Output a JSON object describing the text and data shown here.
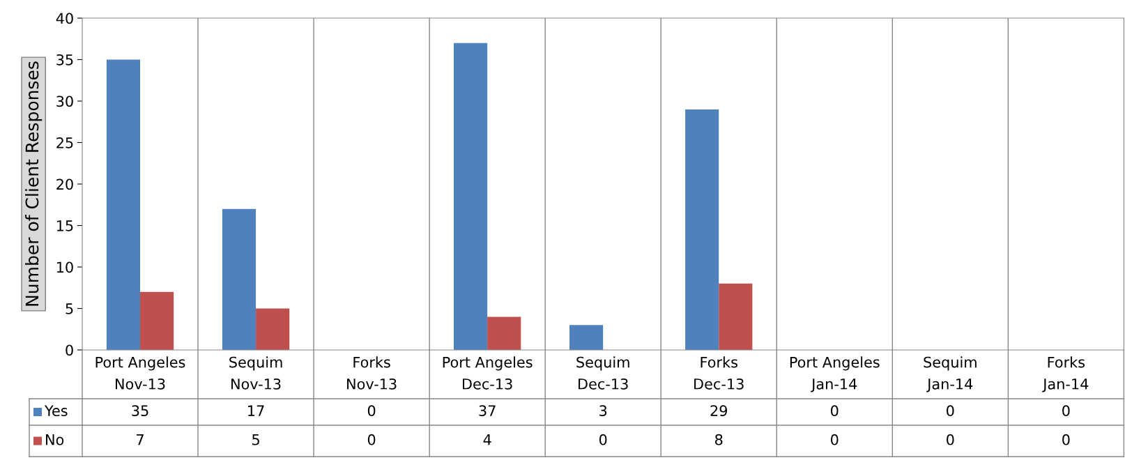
{
  "chart_data": {
    "type": "bar",
    "ylabel": "Number of Client Responses",
    "categories": [
      "Port Angeles\nNov-13",
      "Sequim\nNov-13",
      "Forks\nNov-13",
      "Port Angeles\nDec-13",
      "Sequim\nDec-13",
      "Forks\nDec-13",
      "Port Angeles\nJan-14",
      "Sequim\nJan-14",
      "Forks\nJan-14"
    ],
    "series": [
      {
        "name": "Yes",
        "color": "#4f81bd",
        "values": [
          35,
          17,
          0,
          37,
          3,
          29,
          0,
          0,
          0
        ]
      },
      {
        "name": "No",
        "color": "#c0504d",
        "values": [
          7,
          5,
          0,
          4,
          0,
          8,
          0,
          0,
          0
        ]
      }
    ],
    "ylim": [
      0,
      40
    ],
    "yticks": [
      0,
      5,
      10,
      15,
      20,
      25,
      30,
      35,
      40
    ],
    "grid": false,
    "legend": "bottom",
    "data_labels": true
  }
}
